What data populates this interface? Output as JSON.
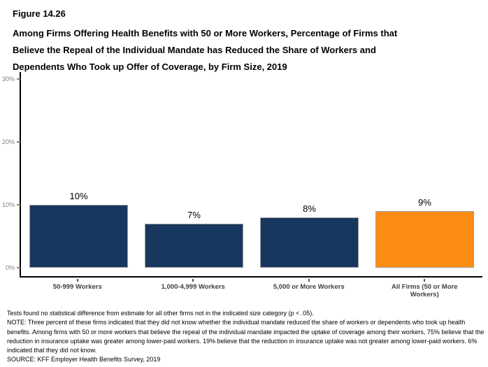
{
  "figure": {
    "number": "Figure 14.26",
    "title": "Among Firms Offering Health Benefits with 50 or More Workers, Percentage of Firms that Believe the Repeal of the Individual Mandate has Reduced the Share of Workers and Dependents Who Took up Offer of Coverage, by Firm Size, 2019"
  },
  "chart_data": {
    "type": "bar",
    "categories": [
      "50-999 Workers",
      "1,000-4,999 Workers",
      "5,000 or More Workers",
      "All Firms (50 or More Workers)"
    ],
    "values": [
      10,
      7,
      8,
      9
    ],
    "value_labels": [
      "10%",
      "7%",
      "8%",
      "9%"
    ],
    "bar_colors": [
      "#17375E",
      "#17375E",
      "#17375E",
      "#FB8D17"
    ],
    "bar_border_color": "#9C9C9C",
    "title": "",
    "xlabel": "",
    "ylabel": "",
    "ylim": [
      0,
      31
    ],
    "yticks": [
      0,
      10,
      20,
      30
    ],
    "ytick_labels": [
      "0%",
      "10%",
      "20%",
      "30%"
    ],
    "grid": false,
    "legend": false,
    "colors": {
      "navy": "#17375E",
      "orange": "#FB8D17",
      "axis": "#000000",
      "ytick_text": "#7F7F7F",
      "xtick_text": "#3F3F3F"
    }
  },
  "footnotes": {
    "stat_note": "Tests found no statistical difference from estimate for all other firms not in the indicated size category (p < .05).",
    "note": "NOTE: Three percent of these firms indicated that they did not know whether the individual mandate reduced the share of workers or dependents who took up health benefits. Among firms with 50 or more workers that believe the repeal of the individual mandate impacted the uptake of coverage among their workers, 75% believe that the reduction in insurance uptake was greater among lower-paid workers. 19% believe that the reduction in insurance uptake was not greater among lower-paid workers. 6% indicated that they did not know.",
    "source": "SOURCE: KFF Employer Health Benefits Survey, 2019"
  }
}
